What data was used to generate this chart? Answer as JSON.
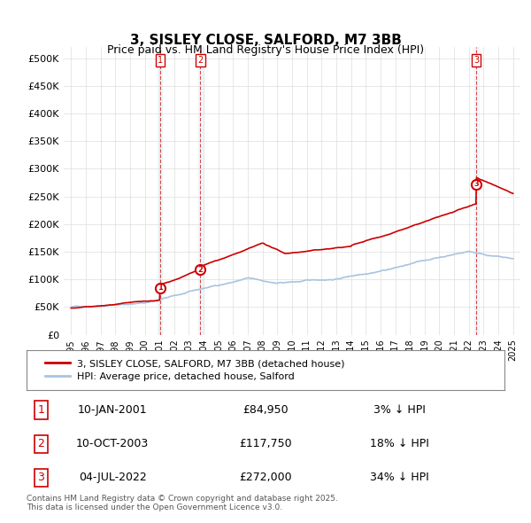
{
  "title": "3, SISLEY CLOSE, SALFORD, M7 3BB",
  "subtitle": "Price paid vs. HM Land Registry's House Price Index (HPI)",
  "ylabel": "",
  "ylim": [
    0,
    520000
  ],
  "yticks": [
    0,
    50000,
    100000,
    150000,
    200000,
    250000,
    300000,
    350000,
    400000,
    450000,
    500000
  ],
  "ytick_labels": [
    "£0",
    "£50K",
    "£100K",
    "£150K",
    "£200K",
    "£250K",
    "£300K",
    "£350K",
    "£400K",
    "£450K",
    "£500K"
  ],
  "hpi_color": "#a8c4e0",
  "price_color": "#cc0000",
  "sale_marker_color": "#cc0000",
  "sale_vline_color": "#cc0000",
  "background_color": "#ffffff",
  "grid_color": "#dddddd",
  "sales": [
    {
      "date_num": 2001.03,
      "price": 84950,
      "label": "1"
    },
    {
      "date_num": 2003.78,
      "price": 117750,
      "label": "2"
    },
    {
      "date_num": 2022.5,
      "price": 272000,
      "label": "3"
    }
  ],
  "legend_entries": [
    {
      "label": "3, SISLEY CLOSE, SALFORD, M7 3BB (detached house)",
      "color": "#cc0000"
    },
    {
      "label": "HPI: Average price, detached house, Salford",
      "color": "#a8c4e0"
    }
  ],
  "table_rows": [
    {
      "num": "1",
      "date": "10-JAN-2001",
      "price": "£84,950",
      "hpi": "3% ↓ HPI"
    },
    {
      "num": "2",
      "date": "10-OCT-2003",
      "price": "£117,750",
      "hpi": "18% ↓ HPI"
    },
    {
      "num": "3",
      "date": "04-JUL-2022",
      "price": "£272,000",
      "hpi": "34% ↓ HPI"
    }
  ],
  "footer": "Contains HM Land Registry data © Crown copyright and database right 2025.\nThis data is licensed under the Open Government Licence v3.0.",
  "xlim": [
    1994.5,
    2025.5
  ],
  "xticks": [
    1995,
    1996,
    1997,
    1998,
    1999,
    2000,
    2001,
    2002,
    2003,
    2004,
    2005,
    2006,
    2007,
    2008,
    2009,
    2010,
    2011,
    2012,
    2013,
    2014,
    2015,
    2016,
    2017,
    2018,
    2019,
    2020,
    2021,
    2022,
    2023,
    2024,
    2025
  ]
}
